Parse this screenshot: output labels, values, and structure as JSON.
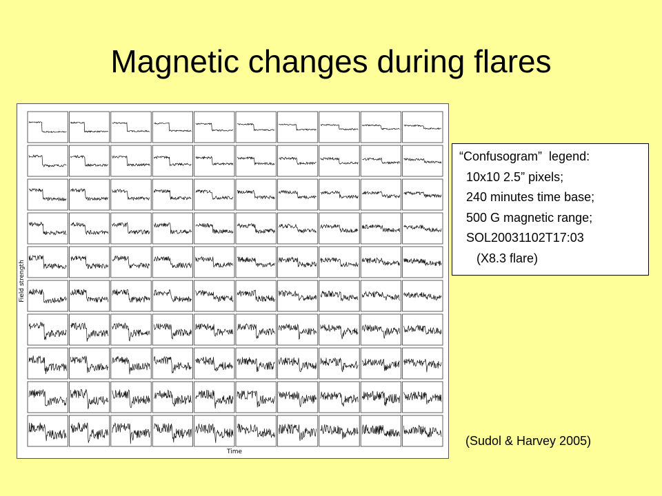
{
  "header": {
    "title": "Magnetic changes during flares"
  },
  "figure": {
    "y_label": "Field strength",
    "x_label": "Time"
  },
  "legend": {
    "lines": [
      "“Confusogram”  legend:",
      "  10x10 2.5” pixels;",
      "  240 minutes time base;",
      "  500 G magnetic range;",
      "  SOL20031102T17:03",
      "     (X8.3 flare)"
    ]
  },
  "citation": "(Sudol & Harvey 2005)"
}
